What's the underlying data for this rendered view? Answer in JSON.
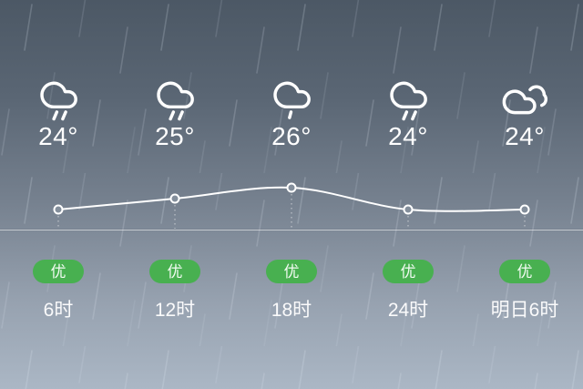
{
  "forecast": {
    "columns": [
      {
        "time": "6时",
        "temp": "24°",
        "aqi": "优",
        "icon": "cloud-rain"
      },
      {
        "time": "12时",
        "temp": "25°",
        "aqi": "优",
        "icon": "cloud-rain"
      },
      {
        "time": "18时",
        "temp": "26°",
        "aqi": "优",
        "icon": "cloud-drizzle"
      },
      {
        "time": "24时",
        "temp": "24°",
        "aqi": "优",
        "icon": "cloud-rain"
      },
      {
        "time": "明日6时",
        "temp": "24°",
        "aqi": "优",
        "icon": "cloudy"
      }
    ]
  },
  "chart_data": {
    "type": "line",
    "title": "",
    "categories": [
      "6时",
      "12时",
      "18时",
      "24时",
      "明日6时"
    ],
    "values": [
      24,
      25,
      26,
      24,
      24
    ],
    "unit": "°C",
    "ylim": [
      23,
      27
    ],
    "grid": false,
    "legend": "none",
    "marker": "open-circle",
    "line_color": "#ffffff"
  },
  "colors": {
    "badge_green": "#48b050",
    "bg_top": "#4c5865",
    "bg_bottom": "#abb7c5",
    "line": "#ffffff"
  }
}
